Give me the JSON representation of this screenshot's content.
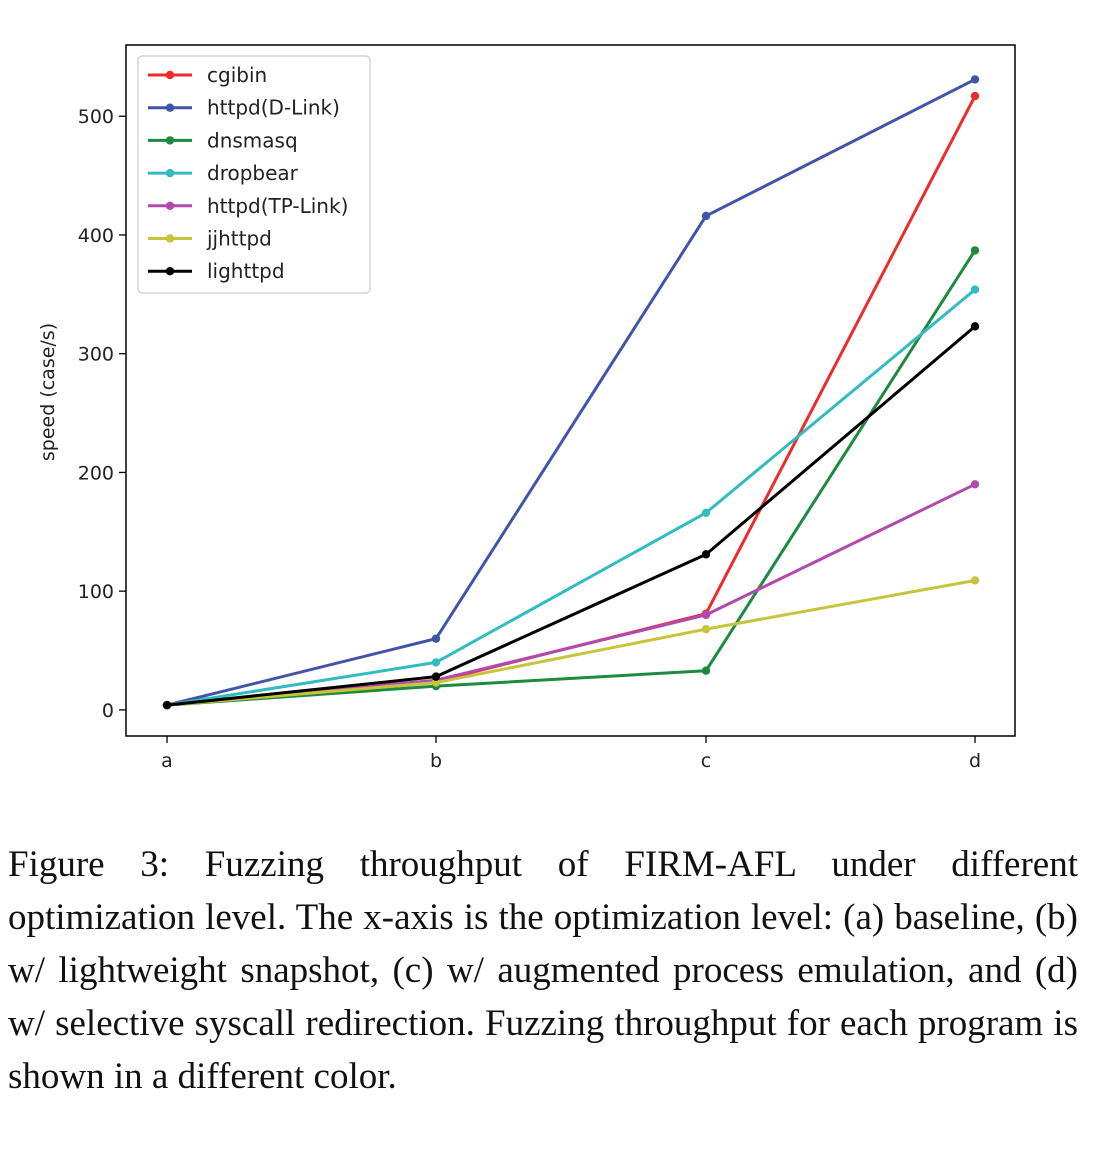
{
  "chart_data": {
    "type": "line",
    "categories": [
      "a",
      "b",
      "c",
      "d"
    ],
    "ylabel": "speed (case/s)",
    "ylim": [
      -22,
      560
    ],
    "yticks": [
      0,
      100,
      200,
      300,
      400,
      500
    ],
    "grid": false,
    "legend_position": "top-left",
    "series": [
      {
        "name": "cgibin",
        "color": "#ee2b2b",
        "values": [
          4,
          24,
          81,
          517
        ]
      },
      {
        "name": "httpd(D-Link)",
        "color": "#4155a8",
        "values": [
          4,
          60,
          416,
          531
        ]
      },
      {
        "name": "dnsmasq",
        "color": "#1d8a3f",
        "values": [
          4,
          20,
          33,
          387
        ]
      },
      {
        "name": "dropbear",
        "color": "#33bcc0",
        "values": [
          4,
          40,
          166,
          354
        ]
      },
      {
        "name": "httpd(TP-Link)",
        "color": "#b04aad",
        "values": [
          4,
          25,
          80,
          190
        ]
      },
      {
        "name": "jjhttpd",
        "color": "#c8c43a",
        "values": [
          4,
          23,
          68,
          109
        ]
      },
      {
        "name": "lighttpd",
        "color": "#000000",
        "values": [
          4,
          28,
          131,
          323
        ]
      }
    ]
  },
  "caption": {
    "prefix": "Figure 3: Fuzzing throughput of ",
    "name_f": "F",
    "name_irm": "IRM",
    "name_rest": "-AFL under different optimization level. The x-axis is the optimization level: (a) baseline, (b) w/ lightweight snapshot, (c) w/ augmented process emulation, and (d) w/ selective syscall redirection. Fuzzing throughput for each program is shown in a different color."
  }
}
